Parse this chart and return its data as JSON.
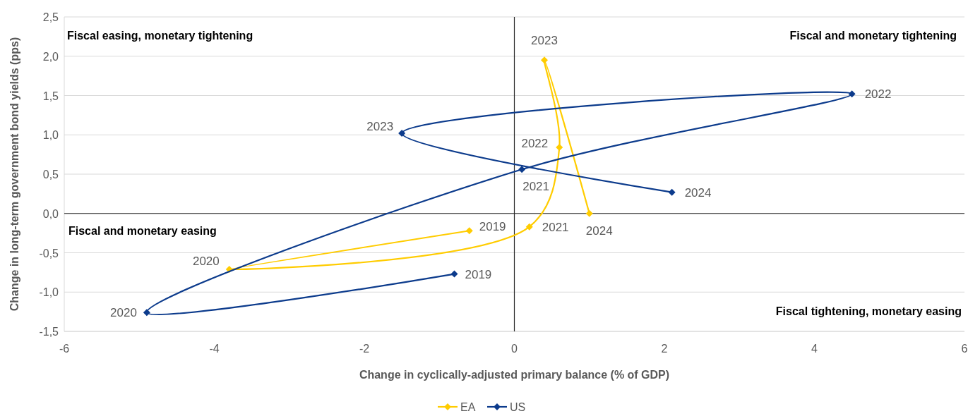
{
  "chart_data": {
    "type": "line",
    "xlabel": "Change in cyclically-adjusted primary balance (% of GDP)",
    "ylabel": "Change in long-term government bond yields (pps)",
    "xlim": [
      -6,
      6
    ],
    "xticks": [
      -6,
      -4,
      -2,
      0,
      2,
      4,
      6
    ],
    "ylim": [
      -1.5,
      2.5
    ],
    "yticks": [
      {
        "value": -1.5,
        "label": "-1,5"
      },
      {
        "value": -1,
        "label": "-1,0"
      },
      {
        "value": -0.5,
        "label": "-0,5"
      },
      {
        "value": 0,
        "label": "0,0"
      },
      {
        "value": 0.5,
        "label": "0,5"
      },
      {
        "value": 1,
        "label": "1,0"
      },
      {
        "value": 1.5,
        "label": "1,5"
      },
      {
        "value": 2,
        "label": "2,0"
      },
      {
        "value": 2.5,
        "label": "2,5"
      }
    ],
    "grid": "y",
    "legend": "bottom",
    "marker": "diamond",
    "line_style": "solid",
    "ref_lines": [
      {
        "axis": "x",
        "value": 0,
        "color": "#262626"
      }
    ],
    "annotations": [
      "Fiscal easing, monetary tightening",
      "Fiscal and monetary tightening",
      "Fiscal and monetary easing",
      "Fiscal tightening, monetary easing",
      {
        "text": "2019",
        "x": -0.6,
        "y": -0.22
      },
      {
        "text": "2020",
        "x": -3.8,
        "y": -0.71
      },
      {
        "text": "2021",
        "x": 0.2,
        "y": -0.17
      },
      {
        "text": "2022",
        "x": 0.6,
        "y": 0.84
      },
      {
        "text": "2023",
        "x": 0.4,
        "y": 1.95
      },
      {
        "text": "2024",
        "x": 1.0,
        "y": 0.0
      },
      {
        "text": "2019",
        "x": -0.8,
        "y": -0.77
      },
      {
        "text": "2020",
        "x": -4.9,
        "y": -1.26
      },
      {
        "text": "2021",
        "x": 0.1,
        "y": 0.56
      },
      {
        "text": "2022",
        "x": 4.5,
        "y": 1.52
      },
      {
        "text": "2023",
        "x": -1.5,
        "y": 1.02
      },
      {
        "text": "2024",
        "x": 2.1,
        "y": 0.27
      }
    ],
    "series": [
      {
        "name": "EA",
        "color": "#ffcc00",
        "x": [
          -0.6,
          -3.8,
          0.2,
          0.6,
          0.4,
          1.0
        ],
        "values": [
          -0.22,
          -0.71,
          -0.17,
          0.84,
          1.95,
          0.0
        ]
      },
      {
        "name": "US",
        "color": "#0c3b8c",
        "x": [
          -0.8,
          -4.9,
          0.1,
          4.5,
          -1.5,
          2.1
        ],
        "values": [
          -0.77,
          -1.26,
          0.56,
          1.52,
          1.02,
          0.27
        ]
      }
    ]
  }
}
